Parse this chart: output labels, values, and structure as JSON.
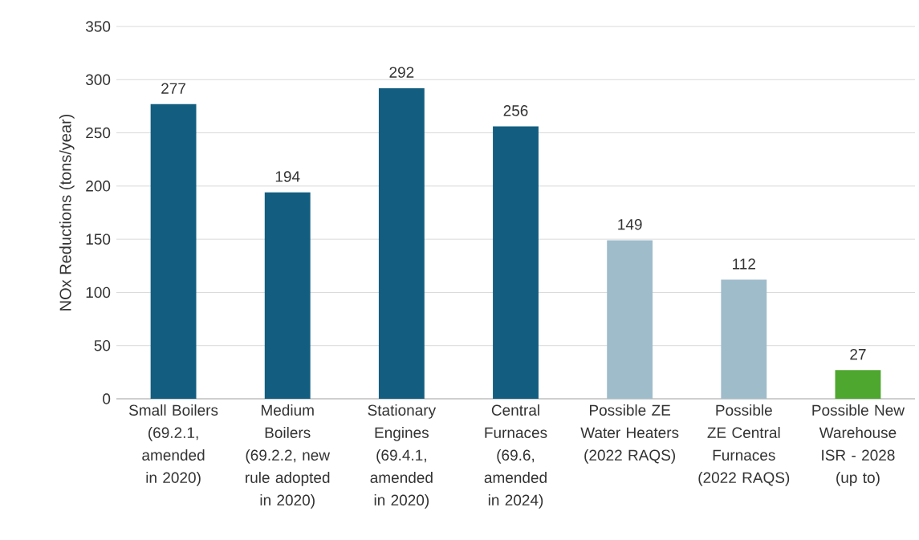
{
  "chart_data": {
    "type": "bar",
    "ylabel": "NOx Reductions (tons/year)",
    "categories": [
      "Small Boilers (69.2.1, amended in 2020)",
      "Medium Boilers (69.2.2, new rule adopted in 2020)",
      "Stationary Engines (69.4.1, amended in 2020)",
      "Central Furnaces (69.6, amended in 2024)",
      "Possible ZE Water Heaters (2022 RAQS)",
      "Possible ZE Central Furnaces (2022 RAQS)",
      "Possible New Warehouse ISR - 2028 (up to)"
    ],
    "values": [
      277,
      194,
      292,
      256,
      149,
      112,
      27
    ],
    "colors": [
      "#135e80",
      "#135e80",
      "#135e80",
      "#135e80",
      "#9fbccb",
      "#9fbccb",
      "#4ea72e"
    ],
    "ylim": [
      0,
      350
    ],
    "yticks": [
      0,
      50,
      100,
      150,
      200,
      250,
      300,
      350
    ],
    "grid": "y",
    "data_labels": true
  }
}
